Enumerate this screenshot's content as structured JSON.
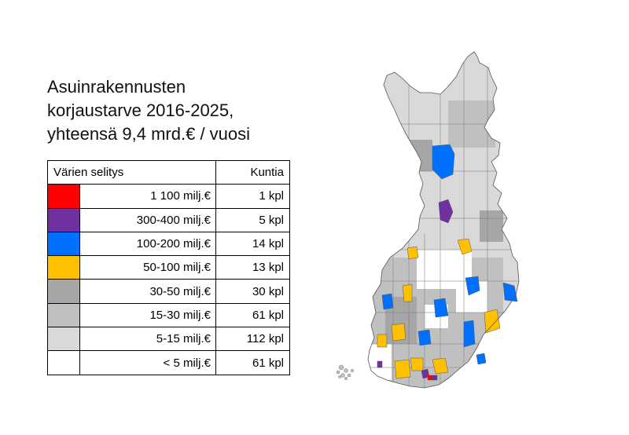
{
  "title": {
    "line1": "Asuinrakennusten",
    "line2": "korjaustarve 2016-2025,",
    "line3": "yhteensä 9,4 mrd.€ / vuosi"
  },
  "legend": {
    "header_label": "Värien selitys",
    "header_count": "Kuntia",
    "rows": [
      {
        "color": "#ff0000",
        "range": "1 100 milj.€",
        "count": "1 kpl"
      },
      {
        "color": "#7030a0",
        "range": "300-400 milj.€",
        "count": "5 kpl"
      },
      {
        "color": "#0070ff",
        "range": "100-200 milj.€",
        "count": "14 kpl"
      },
      {
        "color": "#ffc000",
        "range": "50-100 milj.€",
        "count": "13 kpl"
      },
      {
        "color": "#a6a6a6",
        "range": "30-50 milj.€",
        "count": "30 kpl"
      },
      {
        "color": "#c0c0c0",
        "range": "15-30 milj.€",
        "count": "61 kpl"
      },
      {
        "color": "#d9d9d9",
        "range": "5-15 milj.€",
        "count": "112 kpl"
      },
      {
        "color": "#ffffff",
        "range": "< 5 milj.€",
        "count": "61 kpl"
      }
    ]
  },
  "map": {
    "region": "Finland",
    "category_colors": {
      "red": "#ff0000",
      "purple": "#7030a0",
      "blue": "#0070ff",
      "orange": "#ffc000",
      "darkgray": "#a6a6a6",
      "midgray": "#c0c0c0",
      "lightgray": "#d9d9d9",
      "white": "#ffffff"
    }
  }
}
